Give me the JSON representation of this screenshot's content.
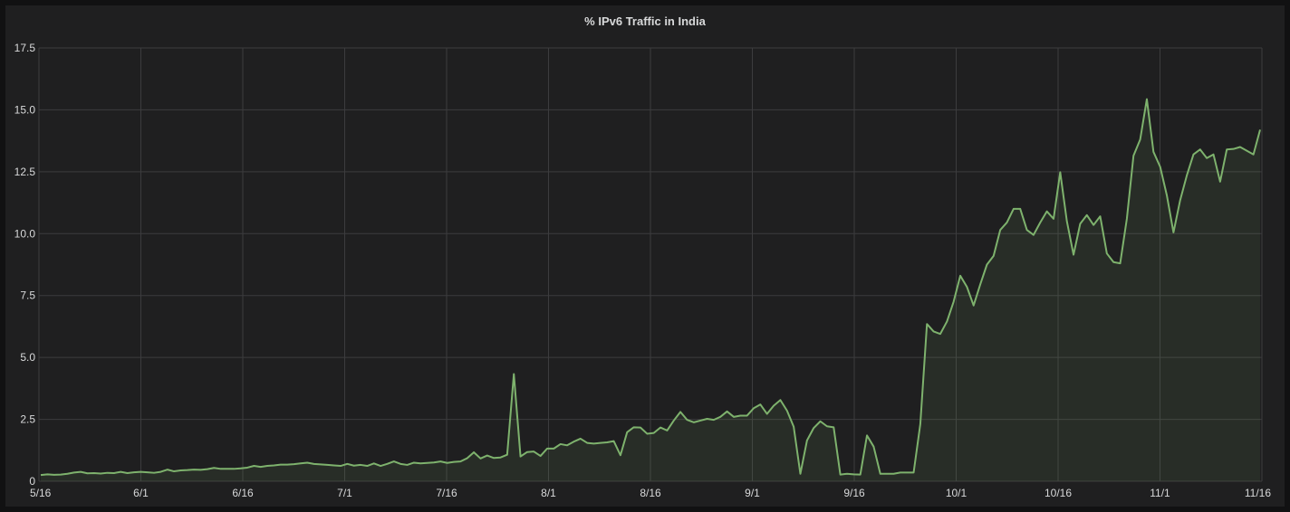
{
  "panel": {
    "title": "% IPv6 Traffic in India"
  },
  "chart_data": {
    "type": "area",
    "title": "% IPv6 Traffic in India",
    "xlabel": "",
    "ylabel": "",
    "x_start": "2016-05-16",
    "x_ticks": [
      "5/16",
      "6/1",
      "6/16",
      "7/1",
      "7/16",
      "8/1",
      "8/16",
      "9/1",
      "9/16",
      "10/1",
      "10/16",
      "11/1",
      "11/16"
    ],
    "y_ticks": [
      "0",
      "2.5",
      "5.0",
      "7.5",
      "10.0",
      "12.5",
      "15.0",
      "17.5"
    ],
    "ylim": [
      0,
      17.5
    ],
    "grid": true,
    "colors": {
      "line": "#7eb26d",
      "fill": "#7eb26d",
      "grid": "#3c3c3e",
      "background": "#1f1f20",
      "text": "#d8d9da"
    },
    "series": [
      {
        "name": "",
        "values": [
          0.25,
          0.28,
          0.26,
          0.27,
          0.3,
          0.35,
          0.38,
          0.32,
          0.33,
          0.31,
          0.34,
          0.33,
          0.38,
          0.33,
          0.36,
          0.38,
          0.36,
          0.34,
          0.38,
          0.47,
          0.4,
          0.44,
          0.45,
          0.47,
          0.46,
          0.49,
          0.54,
          0.5,
          0.5,
          0.5,
          0.52,
          0.55,
          0.62,
          0.58,
          0.62,
          0.64,
          0.67,
          0.67,
          0.69,
          0.72,
          0.75,
          0.7,
          0.68,
          0.66,
          0.64,
          0.62,
          0.7,
          0.63,
          0.66,
          0.62,
          0.72,
          0.62,
          0.7,
          0.8,
          0.7,
          0.66,
          0.75,
          0.72,
          0.74,
          0.76,
          0.8,
          0.74,
          0.78,
          0.8,
          0.93,
          1.17,
          0.92,
          1.04,
          0.94,
          0.96,
          1.07,
          4.33,
          1.0,
          1.18,
          1.2,
          1.02,
          1.32,
          1.32,
          1.5,
          1.45,
          1.6,
          1.72,
          1.55,
          1.52,
          1.55,
          1.57,
          1.62,
          1.05,
          1.98,
          2.18,
          2.17,
          1.92,
          1.95,
          2.17,
          2.05,
          2.45,
          2.8,
          2.48,
          2.38,
          2.45,
          2.52,
          2.48,
          2.6,
          2.82,
          2.6,
          2.65,
          2.65,
          2.95,
          3.1,
          2.72,
          3.05,
          3.28,
          2.85,
          2.2,
          0.3,
          1.65,
          2.15,
          2.42,
          2.22,
          2.18,
          0.27,
          0.3,
          0.28,
          0.27,
          1.85,
          1.4,
          0.3,
          0.3,
          0.3,
          0.35,
          0.35,
          0.35,
          2.3,
          6.35,
          6.05,
          5.95,
          6.45,
          7.25,
          8.3,
          7.85,
          7.1,
          7.95,
          8.75,
          9.1,
          10.15,
          10.45,
          11.0,
          11.0,
          10.15,
          9.95,
          10.45,
          10.9,
          10.6,
          12.48,
          10.5,
          9.15,
          10.4,
          10.75,
          10.35,
          10.7,
          9.2,
          8.85,
          8.8,
          10.6,
          13.15,
          13.8,
          15.43,
          13.3,
          12.7,
          11.55,
          10.05,
          11.35,
          12.35,
          13.2,
          13.4,
          13.05,
          13.2,
          12.1,
          13.4,
          13.42,
          13.5,
          13.35,
          13.2,
          14.2
        ]
      }
    ]
  }
}
